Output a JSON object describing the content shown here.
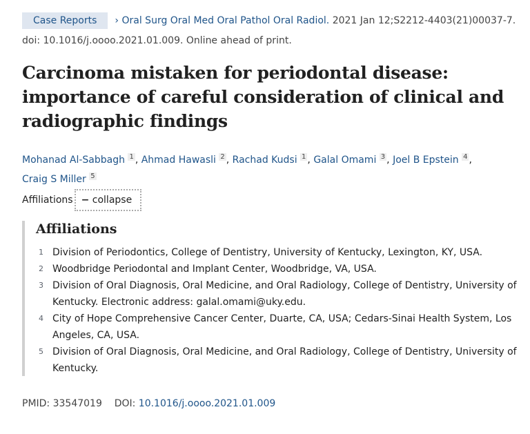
{
  "citation": {
    "badge": "Case Reports",
    "chevron": "›",
    "journal": "Oral Surg Oral Med Oral Pathol Oral Radiol.",
    "date_vol": "2021 Jan 12;S2212-4403(21)00037-7.",
    "doi_line": "doi: 10.1016/j.oooo.2021.01.009. Online ahead of print."
  },
  "title": "Carcinoma mistaken for periodontal disease: importance of careful consideration of clinical and radiographic findings",
  "authors": [
    {
      "name": "Mohanad Al-Sabbagh",
      "aff": "1"
    },
    {
      "name": "Ahmad Hawasli",
      "aff": "2"
    },
    {
      "name": "Rachad Kudsi",
      "aff": "1"
    },
    {
      "name": "Galal Omami",
      "aff": "3"
    },
    {
      "name": "Joel B Epstein",
      "aff": "4"
    },
    {
      "name": "Craig S Miller",
      "aff": "5"
    }
  ],
  "affiliations_toggle": {
    "label": "Affiliations",
    "button": "collapse",
    "icon": "minus-icon"
  },
  "affiliations": {
    "heading": "Affiliations",
    "items": [
      {
        "n": "1",
        "text": "Division of Periodontics, College of Dentistry, University of Kentucky, Lexington, KY, USA."
      },
      {
        "n": "2",
        "text": "Woodbridge Periodontal and Implant Center, Woodbridge, VA, USA."
      },
      {
        "n": "3",
        "text": "Division of Oral Diagnosis, Oral Medicine, and Oral Radiology, College of Dentistry, University of Kentucky. Electronic address: galal.omami@uky.edu."
      },
      {
        "n": "4",
        "text": "City of Hope Comprehensive Cancer Center, Duarte, CA, USA; Cedars-Sinai Health System, Los Angeles, CA, USA."
      },
      {
        "n": "5",
        "text": "Division of Oral Diagnosis, Oral Medicine, and Oral Radiology, College of Dentistry, University of Kentucky."
      }
    ]
  },
  "identifiers": {
    "pmid_label": "PMID:",
    "pmid": "33547019",
    "doi_label": "DOI:",
    "doi": "10.1016/j.oooo.2021.01.009"
  }
}
